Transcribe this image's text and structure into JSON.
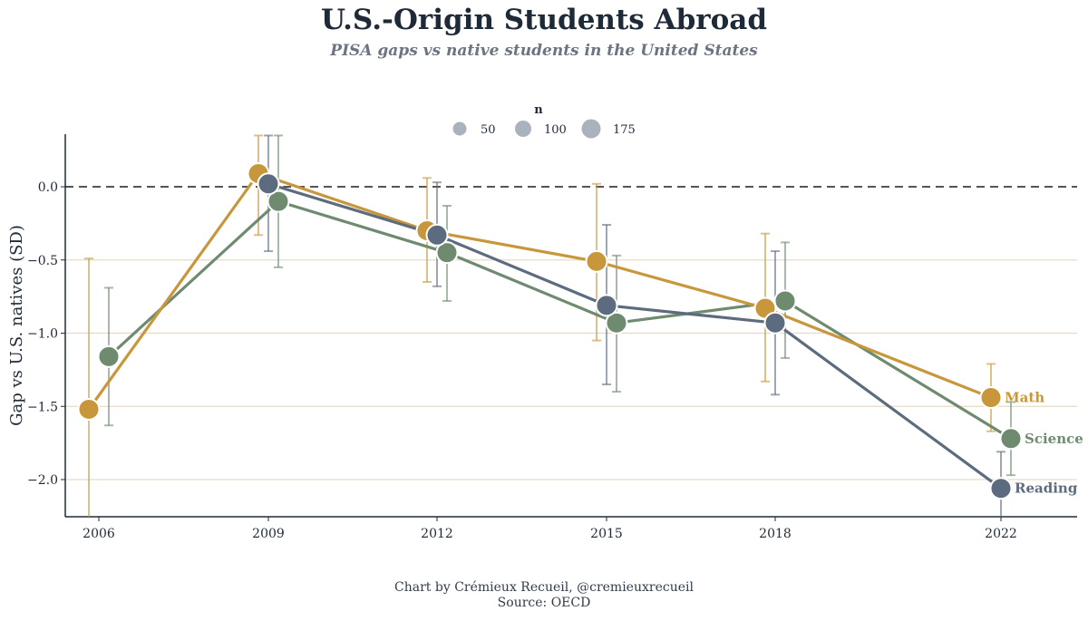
{
  "header": {
    "title": "U.S.-Origin Students Abroad",
    "subtitle": "PISA gaps vs native students in the United States"
  },
  "footer": {
    "credit": "Chart by Crémieux Recueil, @cremieuxrecueil",
    "source": "Source: OECD"
  },
  "chart_data": {
    "type": "line",
    "title": "U.S.-Origin Students Abroad",
    "subtitle": "PISA gaps vs native students in the United States",
    "ylabel": "Gap vs U.S. natives (SD)",
    "xlabel": "",
    "x_ticks": [
      "2006",
      "2009",
      "2012",
      "2015",
      "2018",
      "2022"
    ],
    "y_ticks": [
      "0.0",
      "−0.5",
      "−1.0",
      "−1.5",
      "−2.0"
    ],
    "y_tick_values": [
      0,
      -0.5,
      -1.0,
      -1.5,
      -2.0
    ],
    "ylim": [
      -2.25,
      0.35
    ],
    "xlim": [
      2005.5,
      2023.7
    ],
    "reference_line": 0,
    "grid": "horizontal",
    "legend": {
      "title": "n",
      "placement": "top-center",
      "items": [
        {
          "label": "50",
          "value": 50
        },
        {
          "label": "100",
          "value": 100
        },
        {
          "label": "175",
          "value": 175
        }
      ],
      "color": "#aab3bd"
    },
    "series": [
      {
        "name": "Math",
        "color": "#c8973c",
        "points": [
          {
            "x": 2006,
            "y": -1.52,
            "lo": -2.35,
            "hi": -0.49
          },
          {
            "x": 2009,
            "y": 0.09,
            "lo": -0.33,
            "hi": 0.35
          },
          {
            "x": 2012,
            "y": -0.3,
            "lo": -0.65,
            "hi": 0.06
          },
          {
            "x": 2015,
            "y": -0.51,
            "lo": -1.05,
            "hi": 0.02
          },
          {
            "x": 2018,
            "y": -0.83,
            "lo": -1.33,
            "hi": -0.32
          },
          {
            "x": 2022,
            "y": -1.44,
            "lo": -1.67,
            "hi": -1.21
          }
        ]
      },
      {
        "name": "Science",
        "color": "#6e8b70",
        "points": [
          {
            "x": 2006,
            "y": -1.16,
            "lo": -1.63,
            "hi": -0.69
          },
          {
            "x": 2009,
            "y": -0.1,
            "lo": -0.55,
            "hi": 0.35
          },
          {
            "x": 2012,
            "y": -0.45,
            "lo": -0.78,
            "hi": -0.13
          },
          {
            "x": 2015,
            "y": -0.93,
            "lo": -1.4,
            "hi": -0.47
          },
          {
            "x": 2018,
            "y": -0.78,
            "lo": -1.17,
            "hi": -0.38
          },
          {
            "x": 2022,
            "y": -1.72,
            "lo": -1.97,
            "hi": -1.47
          }
        ]
      },
      {
        "name": "Reading",
        "color": "#5d6b7e",
        "points": [
          {
            "x": 2009,
            "y": 0.02,
            "lo": -0.44,
            "hi": 0.35
          },
          {
            "x": 2012,
            "y": -0.33,
            "lo": -0.68,
            "hi": 0.03
          },
          {
            "x": 2015,
            "y": -0.81,
            "lo": -1.35,
            "hi": -0.26
          },
          {
            "x": 2018,
            "y": -0.93,
            "lo": -1.42,
            "hi": -0.44
          },
          {
            "x": 2022,
            "y": -2.06,
            "lo": -2.3,
            "hi": -1.81
          }
        ]
      }
    ]
  }
}
